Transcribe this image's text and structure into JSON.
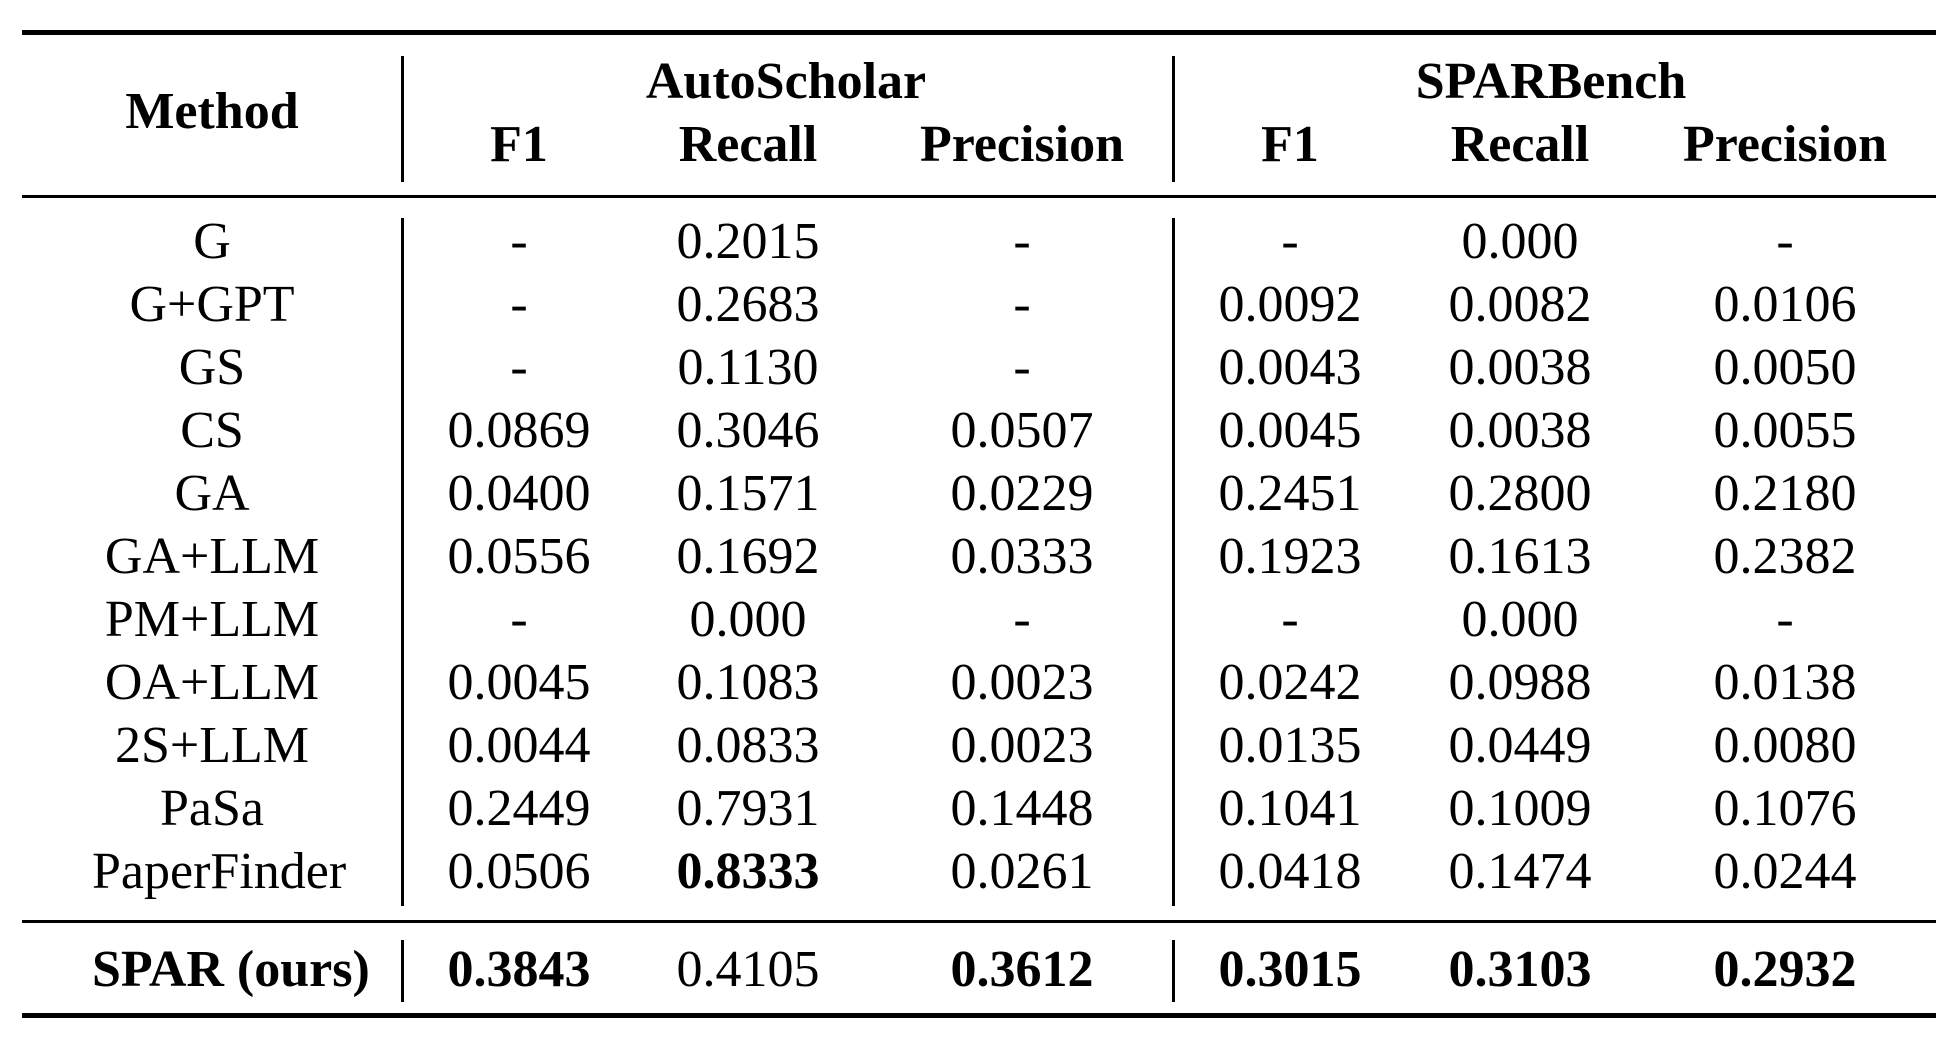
{
  "table": {
    "method_header": "Method",
    "groups": [
      {
        "label": "AutoScholar"
      },
      {
        "label": "SPARBench"
      }
    ],
    "metric_headers": [
      "F1",
      "Recall",
      "Precision",
      "F1",
      "Recall",
      "Precision"
    ],
    "rows": [
      {
        "method": "G",
        "values": [
          "-",
          "0.2015",
          "-",
          "-",
          "0.000",
          "-"
        ]
      },
      {
        "method": "G+GPT",
        "values": [
          "-",
          "0.2683",
          "-",
          "0.0092",
          "0.0082",
          "0.0106"
        ]
      },
      {
        "method": "GS",
        "values": [
          "-",
          "0.1130",
          "-",
          "0.0043",
          "0.0038",
          "0.0050"
        ]
      },
      {
        "method": "CS",
        "values": [
          "0.0869",
          "0.3046",
          "0.0507",
          "0.0045",
          "0.0038",
          "0.0055"
        ]
      },
      {
        "method": "GA",
        "values": [
          "0.0400",
          "0.1571",
          "0.0229",
          "0.2451",
          "0.2800",
          "0.2180"
        ]
      },
      {
        "method": "GA+LLM",
        "values": [
          "0.0556",
          "0.1692",
          "0.0333",
          "0.1923",
          "0.1613",
          "0.2382"
        ]
      },
      {
        "method": "PM+LLM",
        "values": [
          "-",
          "0.000",
          "-",
          "-",
          "0.000",
          "-"
        ]
      },
      {
        "method": "OA+LLM",
        "values": [
          "0.0045",
          "0.1083",
          "0.0023",
          "0.0242",
          "0.0988",
          "0.0138"
        ]
      },
      {
        "method": "2S+LLM",
        "values": [
          "0.0044",
          "0.0833",
          "0.0023",
          "0.0135",
          "0.0449",
          "0.0080"
        ]
      },
      {
        "method": "PaSa",
        "values": [
          "0.2449",
          "0.7931",
          "0.1448",
          "0.1041",
          "0.1009",
          "0.1076"
        ]
      },
      {
        "method": "PaperFinder",
        "values": [
          "0.0506",
          "0.8333",
          "0.0261",
          "0.0418",
          "0.1474",
          "0.0244"
        ],
        "bold": [
          false,
          true,
          false,
          false,
          false,
          false
        ]
      }
    ],
    "final_row": {
      "method": "SPAR (ours)",
      "values": [
        "0.3843",
        "0.4105",
        "0.3612",
        "0.3015",
        "0.3103",
        "0.2932"
      ],
      "bold": [
        true,
        false,
        true,
        true,
        true,
        true
      ]
    }
  }
}
